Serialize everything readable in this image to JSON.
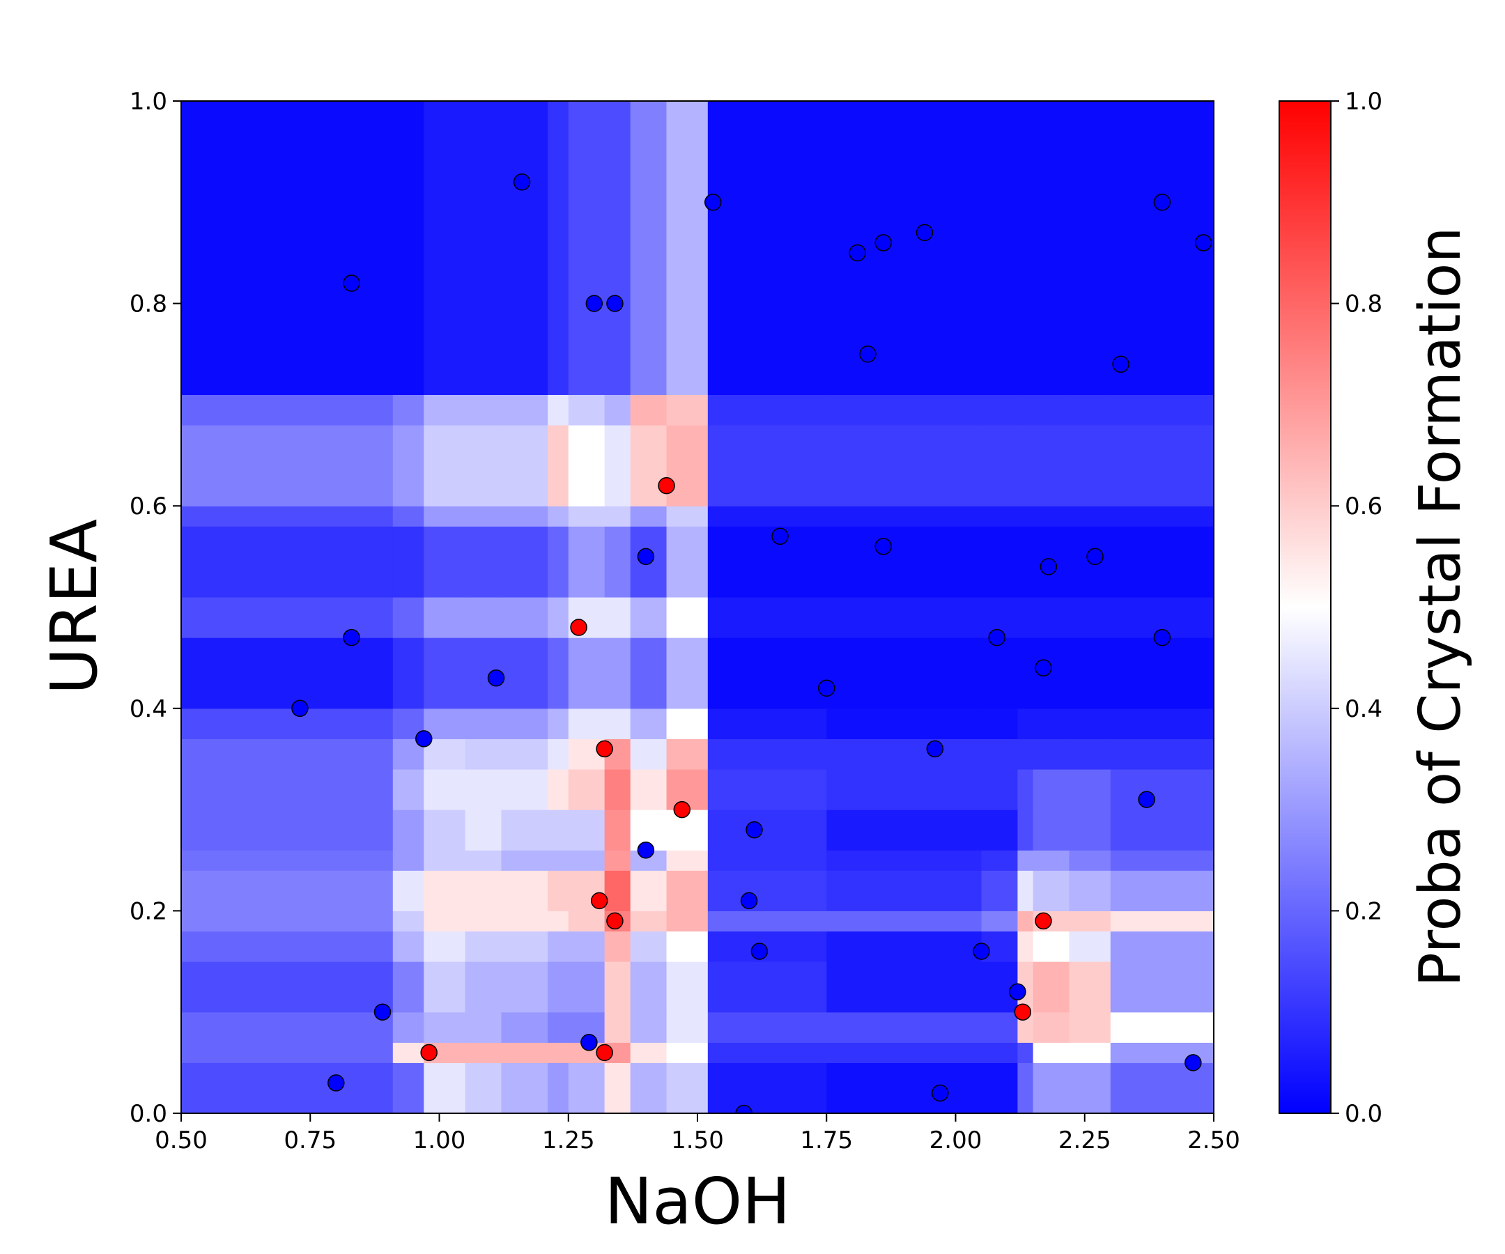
{
  "chart_data": {
    "type": "heatmap",
    "xlabel": "NaOH",
    "ylabel": "UREA",
    "xlim": [
      0.5,
      2.5
    ],
    "ylim": [
      0.0,
      1.0
    ],
    "xticks": [
      "0.50",
      "0.75",
      "1.00",
      "1.25",
      "1.50",
      "1.75",
      "2.00",
      "2.25",
      "2.50"
    ],
    "yticks": [
      "0.0",
      "0.2",
      "0.4",
      "0.6",
      "0.8",
      "1.0"
    ],
    "colorbar": {
      "label": "Proba of Crystal Formation",
      "range": [
        0.0,
        1.0
      ],
      "ticks": [
        "0.0",
        "0.2",
        "0.4",
        "0.6",
        "0.8",
        "1.0"
      ],
      "colors": {
        "low": "#0000ff",
        "mid": "#ffffff",
        "high": "#ff0000"
      }
    },
    "grid": false,
    "heatmap": {
      "x_breaks": [
        0.5,
        0.91,
        0.97,
        1.05,
        1.12,
        1.21,
        1.25,
        1.32,
        1.37,
        1.44,
        1.52,
        1.75,
        2.05,
        2.12,
        2.15,
        2.22,
        2.3,
        2.5
      ],
      "y_breaks": [
        0.0,
        0.05,
        0.07,
        0.1,
        0.15,
        0.18,
        0.2,
        0.24,
        0.26,
        0.3,
        0.34,
        0.37,
        0.4,
        0.47,
        0.51,
        0.58,
        0.6,
        0.68,
        0.71,
        1.0
      ],
      "values": [
        [
          0.15,
          0.2,
          0.45,
          0.4,
          0.35,
          0.3,
          0.35,
          0.55,
          0.35,
          0.4,
          0.05,
          0.03,
          0.03,
          0.2,
          0.3,
          0.3,
          0.2
        ],
        [
          0.2,
          0.55,
          0.65,
          0.65,
          0.65,
          0.65,
          0.65,
          0.7,
          0.55,
          0.5,
          0.1,
          0.1,
          0.1,
          0.15,
          0.5,
          0.5,
          0.3
        ],
        [
          0.2,
          0.3,
          0.35,
          0.35,
          0.3,
          0.25,
          0.25,
          0.6,
          0.35,
          0.45,
          0.15,
          0.15,
          0.15,
          0.6,
          0.62,
          0.6,
          0.5
        ],
        [
          0.15,
          0.25,
          0.4,
          0.35,
          0.35,
          0.3,
          0.3,
          0.6,
          0.35,
          0.45,
          0.1,
          0.05,
          0.05,
          0.6,
          0.65,
          0.6,
          0.3
        ],
        [
          0.2,
          0.35,
          0.45,
          0.4,
          0.4,
          0.35,
          0.35,
          0.65,
          0.4,
          0.5,
          0.08,
          0.05,
          0.08,
          0.55,
          0.5,
          0.45,
          0.3
        ],
        [
          0.25,
          0.4,
          0.55,
          0.55,
          0.55,
          0.55,
          0.6,
          0.75,
          0.6,
          0.65,
          0.2,
          0.2,
          0.25,
          0.65,
          0.6,
          0.6,
          0.55
        ],
        [
          0.25,
          0.45,
          0.55,
          0.55,
          0.55,
          0.6,
          0.6,
          0.8,
          0.55,
          0.65,
          0.12,
          0.1,
          0.15,
          0.45,
          0.38,
          0.35,
          0.3
        ],
        [
          0.22,
          0.3,
          0.4,
          0.4,
          0.35,
          0.35,
          0.35,
          0.7,
          0.35,
          0.55,
          0.1,
          0.08,
          0.1,
          0.3,
          0.3,
          0.25,
          0.2
        ],
        [
          0.2,
          0.3,
          0.4,
          0.45,
          0.4,
          0.4,
          0.4,
          0.72,
          0.5,
          0.5,
          0.1,
          0.05,
          0.05,
          0.15,
          0.2,
          0.2,
          0.15
        ],
        [
          0.2,
          0.35,
          0.45,
          0.45,
          0.45,
          0.55,
          0.6,
          0.75,
          0.55,
          0.7,
          0.12,
          0.1,
          0.1,
          0.15,
          0.2,
          0.2,
          0.15
        ],
        [
          0.2,
          0.3,
          0.42,
          0.4,
          0.4,
          0.45,
          0.55,
          0.7,
          0.45,
          0.65,
          0.1,
          0.1,
          0.1,
          0.1,
          0.1,
          0.1,
          0.1
        ],
        [
          0.15,
          0.2,
          0.3,
          0.3,
          0.3,
          0.35,
          0.45,
          0.45,
          0.35,
          0.5,
          0.05,
          0.03,
          0.03,
          0.05,
          0.05,
          0.05,
          0.05
        ],
        [
          0.05,
          0.1,
          0.15,
          0.15,
          0.15,
          0.2,
          0.3,
          0.3,
          0.2,
          0.35,
          0.02,
          0.02,
          0.02,
          0.02,
          0.02,
          0.02,
          0.02
        ],
        [
          0.15,
          0.2,
          0.3,
          0.3,
          0.3,
          0.35,
          0.45,
          0.45,
          0.35,
          0.5,
          0.05,
          0.05,
          0.05,
          0.05,
          0.05,
          0.05,
          0.05
        ],
        [
          0.1,
          0.1,
          0.15,
          0.15,
          0.15,
          0.2,
          0.3,
          0.25,
          0.15,
          0.35,
          0.02,
          0.02,
          0.02,
          0.02,
          0.02,
          0.02,
          0.02
        ],
        [
          0.15,
          0.2,
          0.3,
          0.3,
          0.3,
          0.35,
          0.4,
          0.4,
          0.3,
          0.4,
          0.05,
          0.05,
          0.05,
          0.05,
          0.05,
          0.05,
          0.05
        ],
        [
          0.25,
          0.3,
          0.4,
          0.4,
          0.4,
          0.6,
          0.5,
          0.45,
          0.6,
          0.65,
          0.12,
          0.12,
          0.12,
          0.12,
          0.12,
          0.12,
          0.12
        ],
        [
          0.2,
          0.25,
          0.35,
          0.35,
          0.35,
          0.45,
          0.4,
          0.35,
          0.65,
          0.62,
          0.1,
          0.1,
          0.1,
          0.1,
          0.1,
          0.1,
          0.1
        ],
        [
          0.02,
          0.02,
          0.05,
          0.05,
          0.05,
          0.1,
          0.15,
          0.15,
          0.25,
          0.35,
          0.02,
          0.02,
          0.02,
          0.02,
          0.02,
          0.02,
          0.02
        ]
      ]
    },
    "points": [
      {
        "x": 0.73,
        "y": 0.4,
        "color": "#0000ff"
      },
      {
        "x": 0.8,
        "y": 0.03,
        "color": "#0000ff"
      },
      {
        "x": 0.83,
        "y": 0.47,
        "color": "#0000ff"
      },
      {
        "x": 0.83,
        "y": 0.82,
        "color": "#0000ff"
      },
      {
        "x": 0.89,
        "y": 0.1,
        "color": "#0000ff"
      },
      {
        "x": 0.97,
        "y": 0.37,
        "color": "#0000ff"
      },
      {
        "x": 0.98,
        "y": 0.06,
        "color": "#ff0000"
      },
      {
        "x": 1.11,
        "y": 0.43,
        "color": "#0000ff"
      },
      {
        "x": 1.16,
        "y": 0.92,
        "color": "#0000ff"
      },
      {
        "x": 1.27,
        "y": 0.48,
        "color": "#ff0000"
      },
      {
        "x": 1.29,
        "y": 0.07,
        "color": "#0000ff"
      },
      {
        "x": 1.3,
        "y": 0.8,
        "color": "#0000ff"
      },
      {
        "x": 1.31,
        "y": 0.21,
        "color": "#ff0000"
      },
      {
        "x": 1.32,
        "y": 0.06,
        "color": "#ff0000"
      },
      {
        "x": 1.32,
        "y": 0.36,
        "color": "#ff0000"
      },
      {
        "x": 1.34,
        "y": 0.19,
        "color": "#ff0000"
      },
      {
        "x": 1.34,
        "y": 0.8,
        "color": "#0000ff"
      },
      {
        "x": 1.4,
        "y": 0.26,
        "color": "#0000ff"
      },
      {
        "x": 1.4,
        "y": 0.55,
        "color": "#0000ff"
      },
      {
        "x": 1.44,
        "y": 0.62,
        "color": "#ff0000"
      },
      {
        "x": 1.47,
        "y": 0.3,
        "color": "#ff0000"
      },
      {
        "x": 1.53,
        "y": 0.9,
        "color": "#0000ff"
      },
      {
        "x": 1.59,
        "y": 0.0,
        "color": "#0000ff"
      },
      {
        "x": 1.6,
        "y": 0.21,
        "color": "#0000ff"
      },
      {
        "x": 1.61,
        "y": 0.28,
        "color": "#0000ff"
      },
      {
        "x": 1.62,
        "y": 0.16,
        "color": "#0000ff"
      },
      {
        "x": 1.66,
        "y": 0.57,
        "color": "#0000ff"
      },
      {
        "x": 1.75,
        "y": 0.42,
        "color": "#0000ff"
      },
      {
        "x": 1.81,
        "y": 0.85,
        "color": "#0000ff"
      },
      {
        "x": 1.83,
        "y": 0.75,
        "color": "#0000ff"
      },
      {
        "x": 1.86,
        "y": 0.56,
        "color": "#0000ff"
      },
      {
        "x": 1.86,
        "y": 0.86,
        "color": "#0000ff"
      },
      {
        "x": 1.94,
        "y": 0.87,
        "color": "#0000ff"
      },
      {
        "x": 1.96,
        "y": 0.36,
        "color": "#0000ff"
      },
      {
        "x": 1.97,
        "y": 0.02,
        "color": "#0000ff"
      },
      {
        "x": 2.05,
        "y": 0.16,
        "color": "#0000ff"
      },
      {
        "x": 2.08,
        "y": 0.47,
        "color": "#0000ff"
      },
      {
        "x": 2.12,
        "y": 0.12,
        "color": "#0000ff"
      },
      {
        "x": 2.13,
        "y": 0.1,
        "color": "#ff0000"
      },
      {
        "x": 2.17,
        "y": 0.19,
        "color": "#ff0000"
      },
      {
        "x": 2.17,
        "y": 0.44,
        "color": "#0000ff"
      },
      {
        "x": 2.18,
        "y": 0.54,
        "color": "#0000ff"
      },
      {
        "x": 2.27,
        "y": 0.55,
        "color": "#0000ff"
      },
      {
        "x": 2.32,
        "y": 0.74,
        "color": "#0000ff"
      },
      {
        "x": 2.37,
        "y": 0.31,
        "color": "#0000ff"
      },
      {
        "x": 2.4,
        "y": 0.47,
        "color": "#0000ff"
      },
      {
        "x": 2.4,
        "y": 0.9,
        "color": "#0000ff"
      },
      {
        "x": 2.46,
        "y": 0.05,
        "color": "#0000ff"
      },
      {
        "x": 2.48,
        "y": 0.86,
        "color": "#0000ff"
      }
    ]
  }
}
